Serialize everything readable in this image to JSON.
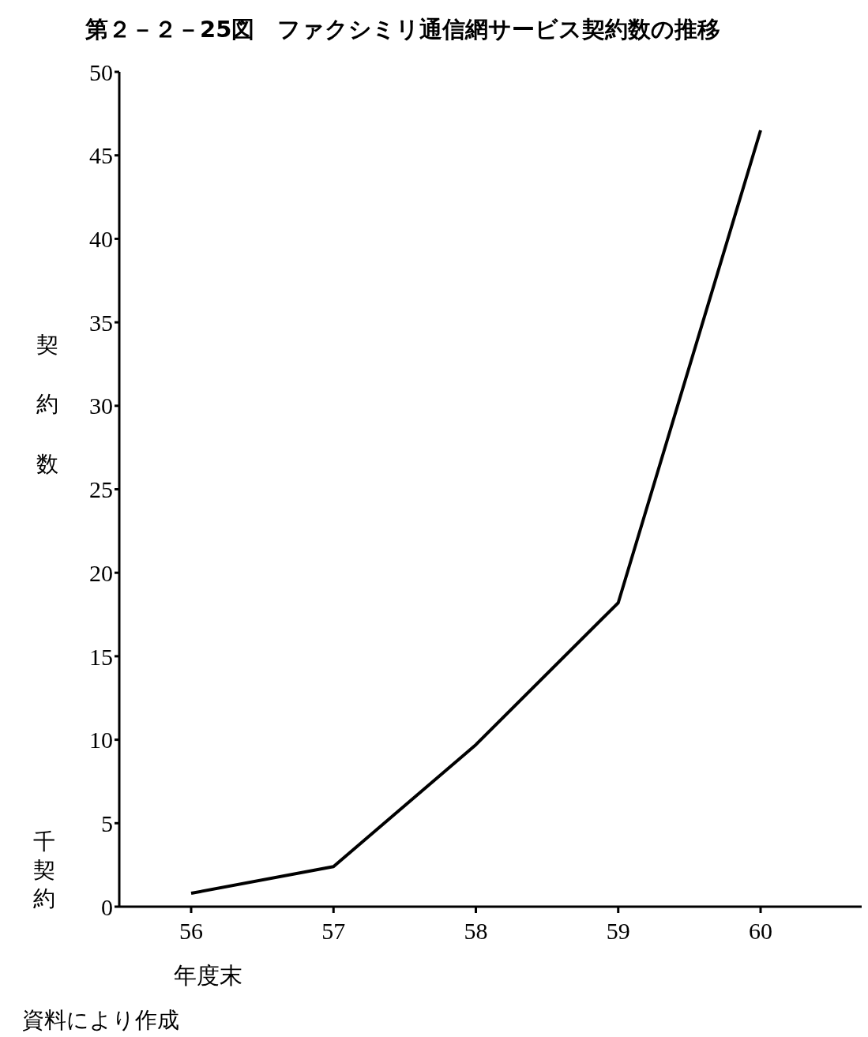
{
  "chart_data": {
    "type": "line",
    "title": "第２－２－25図　ファクシミリ通信網サービス契約数の推移",
    "ylabel": "契約数",
    "xlabel": "年度末",
    "annotations": [
      "千契約",
      "資料により作成"
    ],
    "categories": [
      "56",
      "57",
      "58",
      "59",
      "60"
    ],
    "series": [
      {
        "color": "#000000",
        "values": [
          0.8,
          2.4,
          9.7,
          18.2,
          46.5
        ]
      }
    ],
    "ylim": [
      0,
      50
    ],
    "yticks": [
      0,
      5,
      10,
      15,
      20,
      25,
      30,
      35,
      40,
      45,
      50
    ],
    "grid": false,
    "legend": false,
    "marker": "none",
    "line_style": "solid"
  }
}
